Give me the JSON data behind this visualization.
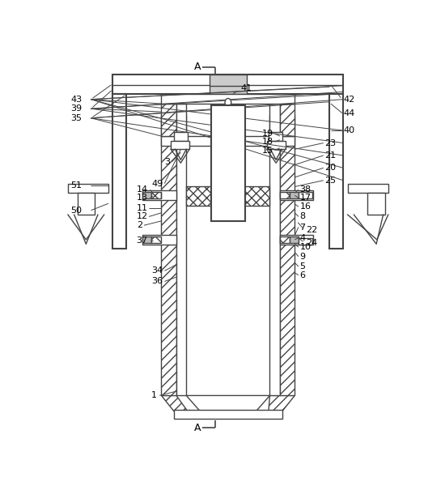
{
  "bg_color": "#ffffff",
  "lc": "#444444",
  "fig_width": 5.5,
  "fig_height": 6.05,
  "dpi": 100
}
